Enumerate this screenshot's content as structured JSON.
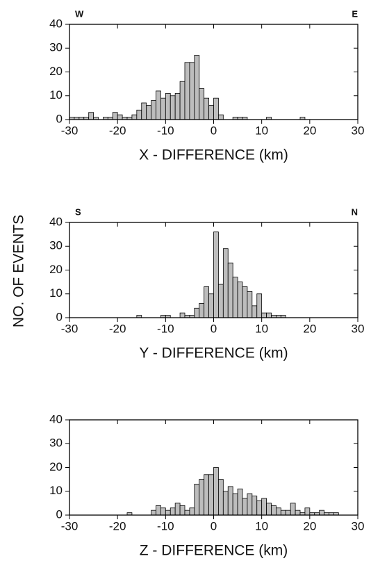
{
  "chart_data": [
    {
      "type": "histogram",
      "left_label": "W",
      "right_label": "E",
      "xlabel": "X - DIFFERENCE (km)",
      "ylabel": "NO. OF EVENTS",
      "color": "#bdbdbd",
      "bins": [
        -30,
        -29,
        -28,
        -27,
        -26,
        -25,
        -24,
        -23,
        -22,
        -21,
        -20,
        -19,
        -18,
        -17,
        -16,
        -15,
        -14,
        -13,
        -12,
        -11,
        -10,
        -9,
        -8,
        -7,
        -6,
        -5,
        -4,
        -3,
        -2,
        -1,
        0,
        1,
        2,
        3,
        4,
        5,
        6,
        7,
        8,
        9,
        10,
        11,
        12,
        13,
        14,
        15,
        16,
        17,
        18,
        19,
        20,
        21,
        22,
        23,
        24,
        25,
        26,
        27,
        28,
        29,
        30
      ],
      "values": [
        1,
        1,
        1,
        1,
        3,
        1,
        0,
        1,
        1,
        3,
        2,
        1,
        1,
        2,
        4,
        7,
        6,
        8,
        12,
        9,
        11,
        10,
        11,
        16,
        24,
        24,
        27,
        13,
        9,
        6,
        9,
        2,
        0,
        0,
        1,
        1,
        1,
        0,
        0,
        0,
        0,
        1,
        0,
        0,
        0,
        0,
        0,
        0,
        1,
        0,
        0,
        0,
        0,
        0,
        0,
        0,
        0,
        0,
        0,
        0
      ],
      "xlim": [
        -30,
        30
      ],
      "xticks": [
        -30,
        -20,
        -10,
        0,
        10,
        20,
        30
      ],
      "ylim": [
        0,
        40
      ],
      "yticks": [
        0,
        10,
        20,
        30,
        40
      ]
    },
    {
      "type": "histogram",
      "left_label": "S",
      "right_label": "N",
      "xlabel": "Y - DIFFERENCE (km)",
      "color": "#bdbdbd",
      "bins": [
        -30,
        -29,
        -28,
        -27,
        -26,
        -25,
        -24,
        -23,
        -22,
        -21,
        -20,
        -19,
        -18,
        -17,
        -16,
        -15,
        -14,
        -13,
        -12,
        -11,
        -10,
        -9,
        -8,
        -7,
        -6,
        -5,
        -4,
        -3,
        -2,
        -1,
        0,
        1,
        2,
        3,
        4,
        5,
        6,
        7,
        8,
        9,
        10,
        11,
        12,
        13,
        14,
        15,
        16,
        17,
        18,
        19,
        20,
        21,
        22,
        23,
        24,
        25,
        26,
        27,
        28,
        29,
        30
      ],
      "values": [
        0,
        0,
        0,
        0,
        0,
        0,
        0,
        0,
        0,
        0,
        0,
        0,
        0,
        0,
        1,
        0,
        0,
        0,
        0,
        1,
        1,
        0,
        0,
        2,
        1,
        1,
        4,
        6,
        13,
        10,
        36,
        14,
        29,
        23,
        17,
        15,
        13,
        11,
        5,
        10,
        2,
        2,
        1,
        1,
        1,
        0,
        0,
        0,
        0,
        0,
        0,
        0,
        0,
        0,
        0,
        0,
        0,
        0,
        0,
        0
      ],
      "xlim": [
        -30,
        30
      ],
      "xticks": [
        -30,
        -20,
        -10,
        0,
        10,
        20,
        30
      ],
      "ylim": [
        0,
        40
      ],
      "yticks": [
        0,
        10,
        20,
        30,
        40
      ]
    },
    {
      "type": "histogram",
      "xlabel": "Z - DIFFERENCE (km)",
      "color": "#bdbdbd",
      "bins": [
        -30,
        -29,
        -28,
        -27,
        -26,
        -25,
        -24,
        -23,
        -22,
        -21,
        -20,
        -19,
        -18,
        -17,
        -16,
        -15,
        -14,
        -13,
        -12,
        -11,
        -10,
        -9,
        -8,
        -7,
        -6,
        -5,
        -4,
        -3,
        -2,
        -1,
        0,
        1,
        2,
        3,
        4,
        5,
        6,
        7,
        8,
        9,
        10,
        11,
        12,
        13,
        14,
        15,
        16,
        17,
        18,
        19,
        20,
        21,
        22,
        23,
        24,
        25,
        26,
        27,
        28,
        29,
        30
      ],
      "values": [
        0,
        0,
        0,
        0,
        0,
        0,
        0,
        0,
        0,
        0,
        0,
        0,
        1,
        0,
        0,
        0,
        0,
        2,
        4,
        3,
        2,
        3,
        5,
        4,
        2,
        3,
        13,
        15,
        17,
        17,
        20,
        15,
        10,
        12,
        9,
        11,
        7,
        9,
        8,
        6,
        7,
        5,
        4,
        3,
        2,
        2,
        5,
        2,
        1,
        3,
        1,
        1,
        2,
        1,
        1,
        1,
        0,
        0,
        0,
        0
      ],
      "xlim": [
        -30,
        30
      ],
      "xticks": [
        -30,
        -20,
        -10,
        0,
        10,
        20,
        30
      ],
      "ylim": [
        0,
        40
      ],
      "yticks": [
        0,
        10,
        20,
        30,
        40
      ]
    }
  ]
}
